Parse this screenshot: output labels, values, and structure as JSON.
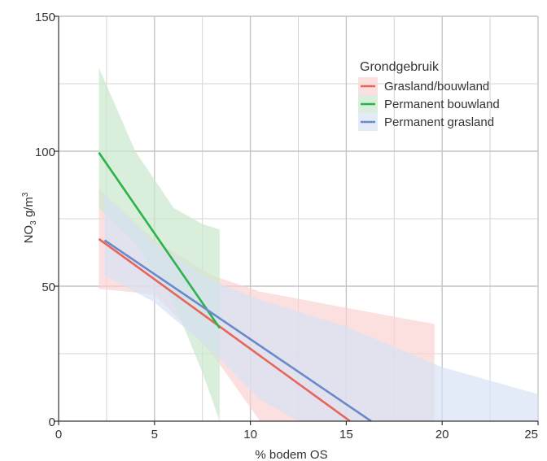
{
  "chart_data": {
    "type": "line",
    "title": "",
    "xlabel": "% bodem OS",
    "ylabel_main": "NO",
    "ylabel_sub": "3",
    "ylabel_rest": " g/m",
    "ylabel_sup": "3",
    "xlim": [
      0,
      25
    ],
    "ylim": [
      0,
      150
    ],
    "x_major_ticks": [
      0,
      5,
      10,
      15,
      20,
      25
    ],
    "x_major_labels": [
      "0",
      "5",
      "10",
      "15",
      "20",
      "25"
    ],
    "x_minor_grid": [
      2.5,
      7.5,
      12.5,
      17.5,
      22.5
    ],
    "y_major_ticks": [
      0,
      50,
      100,
      150
    ],
    "y_major_labels": [
      "0",
      "50",
      "100",
      "150"
    ],
    "y_minor_grid": [
      25,
      75,
      125
    ],
    "grid": true,
    "legend": {
      "title": "Grondgebruik",
      "position": "top-right"
    },
    "series": [
      {
        "name": "Grasland/bouwland",
        "color": "#e8645a",
        "band_color": "#fbd3d3",
        "line": {
          "x": [
            2.1,
            15.2
          ],
          "y": [
            67.5,
            0
          ]
        },
        "band": {
          "upper": [
            [
              2.1,
              86
            ],
            [
              5,
              67
            ],
            [
              8,
              54
            ],
            [
              10.5,
              48
            ],
            [
              15,
              42
            ],
            [
              19.6,
              36
            ]
          ],
          "lower": [
            [
              19.6,
              0
            ],
            [
              12.5,
              0
            ],
            [
              10.5,
              0
            ],
            [
              8,
              25
            ],
            [
              5,
              47
            ],
            [
              2.1,
              49
            ]
          ]
        }
      },
      {
        "name": "Permanent bouwland",
        "color": "#2bb24c",
        "band_color": "#c9e8cc",
        "line": {
          "x": [
            2.1,
            8.4
          ],
          "y": [
            99.5,
            34.5
          ]
        },
        "band": {
          "upper": [
            [
              2.1,
              131
            ],
            [
              4,
              100
            ],
            [
              6,
              79
            ],
            [
              7.5,
              73
            ],
            [
              8.4,
              71
            ]
          ],
          "lower": [
            [
              8.4,
              0
            ],
            [
              7.5,
              18
            ],
            [
              6,
              44
            ],
            [
              4,
              66
            ],
            [
              2.1,
              79
            ]
          ]
        }
      },
      {
        "name": "Permanent grasland",
        "color": "#6a89c9",
        "band_color": "#d5e2f4",
        "line": {
          "x": [
            2.4,
            16.3
          ],
          "y": [
            67,
            0
          ]
        },
        "band": {
          "upper": [
            [
              2.4,
              84
            ],
            [
              5,
              66
            ],
            [
              8,
              52
            ],
            [
              10.5,
              45
            ],
            [
              15,
              35
            ],
            [
              20,
              20
            ],
            [
              25,
              10
            ]
          ],
          "lower": [
            [
              25,
              0
            ],
            [
              12.5,
              0
            ],
            [
              10.5,
              8
            ],
            [
              8,
              26
            ],
            [
              5,
              44
            ],
            [
              2.4,
              54
            ]
          ]
        }
      }
    ]
  }
}
